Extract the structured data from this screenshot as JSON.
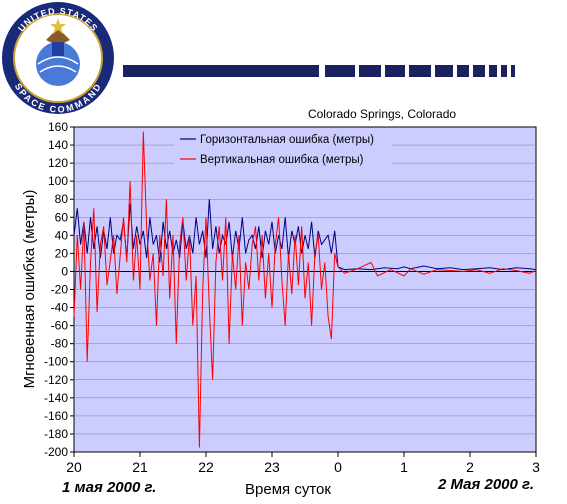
{
  "logo": {
    "top_text": "UNITED STATES",
    "bottom_text": "SPACE COMMAND"
  },
  "chart_data": {
    "type": "line",
    "title": "",
    "location": "Colorado Springs, Colorado",
    "xlabel": "Время суток",
    "ylabel": "Мгновенная ошибка (метры)",
    "ylim": [
      -200,
      160
    ],
    "yticks": [
      160,
      140,
      120,
      100,
      80,
      60,
      40,
      20,
      0,
      -20,
      -40,
      -60,
      -80,
      -100,
      -120,
      -140,
      -160,
      -180,
      -200
    ],
    "x_tick_labels": [
      "20",
      "21",
      "22",
      "23",
      "0",
      "1",
      "2",
      "3"
    ],
    "x_hours": [
      20,
      21,
      22,
      23,
      24,
      25,
      26,
      27
    ],
    "xlim": [
      20,
      27
    ],
    "date_left": "1 мая 2000 г.",
    "date_right": "2 Мая 2000 г.",
    "grid": "horizontal",
    "legend_position": "top-center",
    "background": "#ccccff",
    "series": [
      {
        "name": "Горизонтальная ошибка (метры)",
        "color": "#000080",
        "points": [
          [
            20.0,
            40
          ],
          [
            20.05,
            70
          ],
          [
            20.1,
            30
          ],
          [
            20.15,
            55
          ],
          [
            20.2,
            20
          ],
          [
            20.25,
            60
          ],
          [
            20.3,
            25
          ],
          [
            20.35,
            50
          ],
          [
            20.4,
            15
          ],
          [
            20.45,
            45
          ],
          [
            20.5,
            25
          ],
          [
            20.55,
            60
          ],
          [
            20.6,
            20
          ],
          [
            20.65,
            40
          ],
          [
            20.7,
            35
          ],
          [
            20.75,
            55
          ],
          [
            20.8,
            15
          ],
          [
            20.85,
            75
          ],
          [
            20.9,
            25
          ],
          [
            20.95,
            50
          ],
          [
            21.0,
            30
          ],
          [
            21.05,
            45
          ],
          [
            21.1,
            15
          ],
          [
            21.15,
            60
          ],
          [
            21.2,
            30
          ],
          [
            21.25,
            40
          ],
          [
            21.3,
            10
          ],
          [
            21.35,
            55
          ],
          [
            21.4,
            25
          ],
          [
            21.45,
            45
          ],
          [
            21.5,
            20
          ],
          [
            21.55,
            35
          ],
          [
            21.6,
            15
          ],
          [
            21.65,
            55
          ],
          [
            21.7,
            25
          ],
          [
            21.75,
            40
          ],
          [
            21.8,
            20
          ],
          [
            21.85,
            60
          ],
          [
            21.9,
            30
          ],
          [
            21.95,
            45
          ],
          [
            22.0,
            15
          ],
          [
            22.05,
            80
          ],
          [
            22.1,
            25
          ],
          [
            22.15,
            50
          ],
          [
            22.2,
            20
          ],
          [
            22.25,
            40
          ],
          [
            22.3,
            30
          ],
          [
            22.35,
            55
          ],
          [
            22.4,
            15
          ],
          [
            22.45,
            45
          ],
          [
            22.5,
            25
          ],
          [
            22.55,
            60
          ],
          [
            22.6,
            20
          ],
          [
            22.65,
            35
          ],
          [
            22.7,
            40
          ],
          [
            22.75,
            25
          ],
          [
            22.8,
            50
          ],
          [
            22.85,
            15
          ],
          [
            22.9,
            45
          ],
          [
            22.95,
            30
          ],
          [
            23.0,
            55
          ],
          [
            23.05,
            20
          ],
          [
            23.1,
            40
          ],
          [
            23.15,
            25
          ],
          [
            23.2,
            60
          ],
          [
            23.25,
            15
          ],
          [
            23.3,
            45
          ],
          [
            23.35,
            30
          ],
          [
            23.4,
            50
          ],
          [
            23.45,
            20
          ],
          [
            23.5,
            40
          ],
          [
            23.55,
            25
          ],
          [
            23.6,
            55
          ],
          [
            23.65,
            15
          ],
          [
            23.7,
            45
          ],
          [
            23.75,
            30
          ],
          [
            23.8,
            35
          ],
          [
            23.85,
            40
          ],
          [
            23.9,
            20
          ],
          [
            23.95,
            45
          ],
          [
            24.0,
            5
          ],
          [
            24.1,
            2
          ],
          [
            24.3,
            3
          ],
          [
            24.5,
            2
          ],
          [
            24.7,
            4
          ],
          [
            24.9,
            3
          ],
          [
            25.0,
            5
          ],
          [
            25.1,
            3
          ],
          [
            25.3,
            6
          ],
          [
            25.5,
            3
          ],
          [
            25.7,
            4
          ],
          [
            25.9,
            2
          ],
          [
            26.1,
            3
          ],
          [
            26.3,
            4
          ],
          [
            26.5,
            2
          ],
          [
            26.7,
            4
          ],
          [
            26.9,
            3
          ],
          [
            27.0,
            2
          ]
        ]
      },
      {
        "name": "Вертикальная ошибка (метры)",
        "color": "#ff0000",
        "points": [
          [
            20.0,
            -50
          ],
          [
            20.05,
            40
          ],
          [
            20.1,
            -20
          ],
          [
            20.15,
            55
          ],
          [
            20.2,
            -100
          ],
          [
            20.25,
            10
          ],
          [
            20.3,
            70
          ],
          [
            20.35,
            -45
          ],
          [
            20.4,
            30
          ],
          [
            20.45,
            50
          ],
          [
            20.5,
            -15
          ],
          [
            20.6,
            40
          ],
          [
            20.65,
            -25
          ],
          [
            20.75,
            60
          ],
          [
            20.8,
            10
          ],
          [
            20.85,
            100
          ],
          [
            20.9,
            -10
          ],
          [
            20.95,
            40
          ],
          [
            21.0,
            -20
          ],
          [
            21.05,
            155
          ],
          [
            21.1,
            50
          ],
          [
            21.15,
            -10
          ],
          [
            21.2,
            20
          ],
          [
            21.25,
            -60
          ],
          [
            21.3,
            40
          ],
          [
            21.35,
            -5
          ],
          [
            21.4,
            80
          ],
          [
            21.45,
            -30
          ],
          [
            21.5,
            40
          ],
          [
            21.55,
            -80
          ],
          [
            21.6,
            30
          ],
          [
            21.65,
            60
          ],
          [
            21.7,
            -10
          ],
          [
            21.75,
            40
          ],
          [
            21.8,
            -60
          ],
          [
            21.85,
            -5
          ],
          [
            21.9,
            -195
          ],
          [
            21.95,
            -20
          ],
          [
            22.0,
            60
          ],
          [
            22.05,
            -40
          ],
          [
            22.1,
            -120
          ],
          [
            22.15,
            10
          ],
          [
            22.2,
            50
          ],
          [
            22.25,
            -10
          ],
          [
            22.3,
            60
          ],
          [
            22.35,
            -80
          ],
          [
            22.4,
            20
          ],
          [
            22.45,
            -20
          ],
          [
            22.5,
            40
          ],
          [
            22.55,
            -60
          ],
          [
            22.6,
            10
          ],
          [
            22.65,
            -20
          ],
          [
            22.7,
            30
          ],
          [
            22.75,
            50
          ],
          [
            22.8,
            -10
          ],
          [
            22.85,
            40
          ],
          [
            22.9,
            -30
          ],
          [
            22.95,
            20
          ],
          [
            23.0,
            -40
          ],
          [
            23.05,
            30
          ],
          [
            23.1,
            60
          ],
          [
            23.15,
            -10
          ],
          [
            23.2,
            -60
          ],
          [
            23.25,
            20
          ],
          [
            23.3,
            -25
          ],
          [
            23.35,
            40
          ],
          [
            23.4,
            -15
          ],
          [
            23.45,
            50
          ],
          [
            23.5,
            -30
          ],
          [
            23.55,
            10
          ],
          [
            23.6,
            -60
          ],
          [
            23.65,
            20
          ],
          [
            23.7,
            40
          ],
          [
            23.75,
            -20
          ],
          [
            23.8,
            10
          ],
          [
            23.85,
            -50
          ],
          [
            23.9,
            -75
          ],
          [
            23.95,
            20
          ],
          [
            24.0,
            5
          ],
          [
            24.1,
            -2
          ],
          [
            24.3,
            3
          ],
          [
            24.5,
            10
          ],
          [
            24.6,
            -5
          ],
          [
            24.8,
            2
          ],
          [
            25.0,
            -5
          ],
          [
            25.1,
            3
          ],
          [
            25.3,
            -3
          ],
          [
            25.5,
            2
          ],
          [
            25.7,
            1
          ],
          [
            25.9,
            0
          ],
          [
            26.1,
            2
          ],
          [
            26.3,
            -2
          ],
          [
            26.5,
            3
          ],
          [
            26.7,
            1
          ],
          [
            26.9,
            -2
          ],
          [
            27.0,
            1
          ]
        ]
      }
    ]
  }
}
